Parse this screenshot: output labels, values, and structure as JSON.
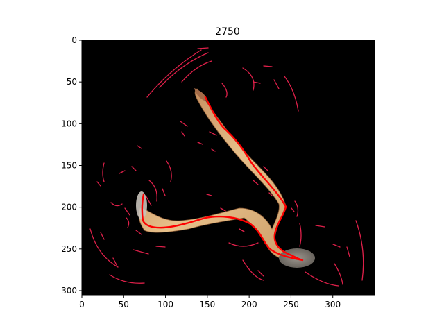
{
  "figure": {
    "title": "2750"
  },
  "image_axes": {
    "x_extent": [
      0,
      350
    ],
    "y_extent": [
      0,
      305
    ],
    "y_inverted": true,
    "x_ticks": [
      0,
      50,
      100,
      150,
      200,
      250,
      300
    ],
    "y_ticks": [
      0,
      50,
      100,
      150,
      200,
      250,
      300
    ],
    "x_tick_labels": [
      "0",
      "50",
      "100",
      "150",
      "200",
      "250",
      "300"
    ],
    "y_tick_labels": [
      "0",
      "50",
      "100",
      "150",
      "200",
      "250",
      "300"
    ]
  },
  "scene": {
    "background": "#000000",
    "body_color": "#d6a46a",
    "edge_color": "#e0204a",
    "centerline_color": "#ff0000"
  }
}
